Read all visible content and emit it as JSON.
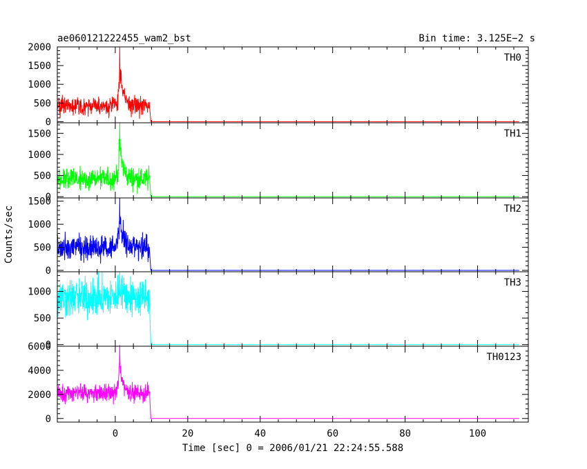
{
  "chart_data": {
    "type": "line",
    "title_left": "ae060121222455_wam2_bst",
    "title_right": "Bin time: 3.125E−2 s",
    "xlabel": "Time [sec] 0 = 2006/01/21 22:24:55.588",
    "ylabel": "Counts/sec",
    "xlim": [
      -16,
      114
    ],
    "x_ticks": [
      0,
      20,
      40,
      60,
      80,
      100
    ],
    "x_tick_labels": [
      "0",
      "20",
      "40",
      "60",
      "80",
      "100"
    ],
    "burst": {
      "data_start": -16,
      "data_end": 9.5,
      "peak_time": 1.2,
      "bin_time": 0.03125
    },
    "panels": [
      {
        "name": "TH0",
        "color": "#ff0000",
        "ylim": [
          -30,
          2000
        ],
        "y_ticks": [
          0,
          500,
          1000,
          1500,
          2000
        ],
        "y_tick_labels": [
          "0",
          "500",
          "1000",
          "1500",
          "2000"
        ],
        "baseline": 420,
        "noise": 200,
        "peak": 2000
      },
      {
        "name": "TH1",
        "color": "#00ff00",
        "ylim": [
          -30,
          1750
        ],
        "y_ticks": [
          0,
          500,
          1000,
          1500
        ],
        "y_tick_labels": [
          "0",
          "500",
          "1000",
          "1500"
        ],
        "baseline": 420,
        "noise": 200,
        "peak": 1750
      },
      {
        "name": "TH2",
        "color": "#0000ff",
        "ylim": [
          -30,
          1570
        ],
        "y_ticks": [
          0,
          500,
          1000,
          1500
        ],
        "y_tick_labels": [
          "0",
          "500",
          "1000",
          "1500"
        ],
        "baseline": 500,
        "noise": 200,
        "peak": 1570
      },
      {
        "name": "TH3",
        "color": "#00ffff",
        "ylim": [
          -30,
          1370
        ],
        "y_ticks": [
          0,
          500,
          1000
        ],
        "y_tick_labels": [
          "0",
          "500",
          "1000"
        ],
        "baseline": 880,
        "noise": 280,
        "peak": 1370
      },
      {
        "name": "TH0123",
        "color": "#ff00ff",
        "ylim": [
          -300,
          6000
        ],
        "y_ticks": [
          0,
          2000,
          4000,
          6000
        ],
        "y_tick_labels": [
          "0",
          "2000",
          "4000",
          "6000"
        ],
        "baseline": 2100,
        "noise": 550,
        "peak": 6100
      }
    ]
  }
}
